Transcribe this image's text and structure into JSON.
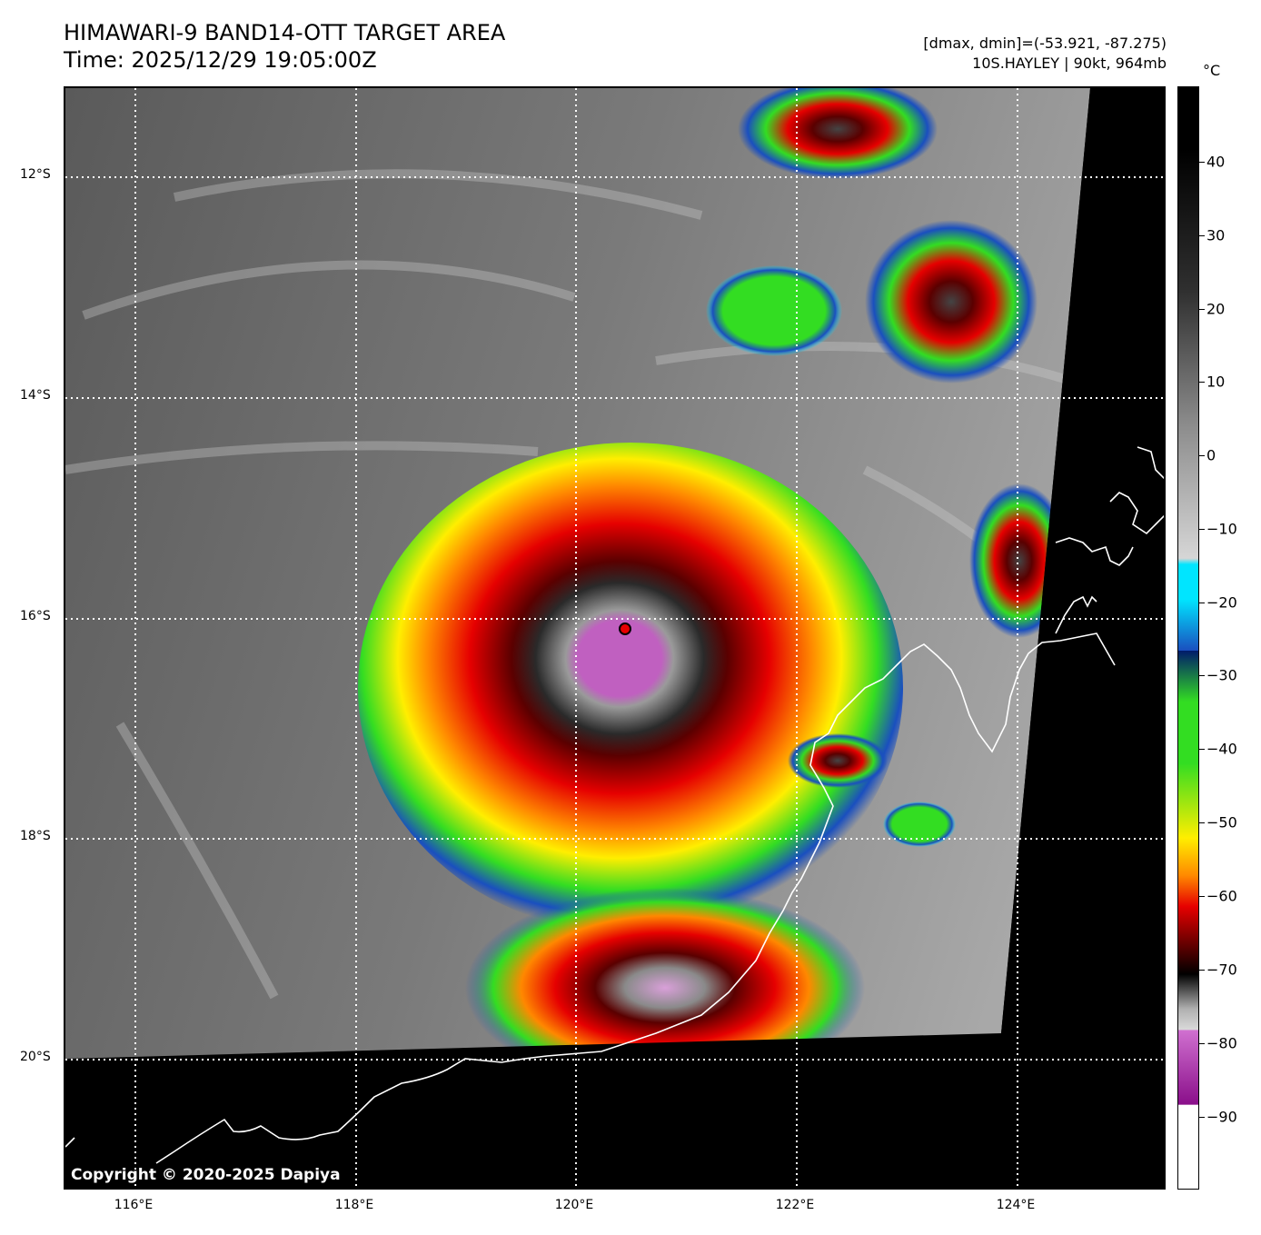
{
  "header": {
    "title": "HIMAWARI-9 BAND14-OTT TARGET AREA",
    "time": "Time: 2025/12/29 19:05:00Z",
    "dmax_dmin": "[dmax, dmin]=(-53.921, -87.275)",
    "storm": "10S.HAYLEY | 90kt, 964mb"
  },
  "map": {
    "lat_labels": [
      "12°S",
      "14°S",
      "16°S",
      "18°S",
      "20°S"
    ],
    "lon_labels": [
      "116°E",
      "118°E",
      "120°E",
      "122°E",
      "124°E"
    ],
    "copyright": "Copyright © 2020-2025 Dapiya"
  },
  "colorbar": {
    "unit": "°C",
    "labels": [
      "40",
      "30",
      "20",
      "10",
      "0",
      "−10",
      "−20",
      "−30",
      "−40",
      "−50",
      "−60",
      "−70",
      "−80",
      "−90"
    ],
    "colors": {
      "warm_black": "#000000",
      "gray_mid": "#8c8c8c",
      "gray_light": "#d6d6d6",
      "cyan": "#00e5ff",
      "blue": "#1a4fbf",
      "navy": "#001a6b",
      "green": "#33dd22",
      "yellow": "#ffee00",
      "orange": "#ff8800",
      "red": "#e60000",
      "dark_red": "#5a0000",
      "magenta": "#c060c0",
      "purple": "#8a0f8a",
      "white": "#ffffff"
    }
  }
}
